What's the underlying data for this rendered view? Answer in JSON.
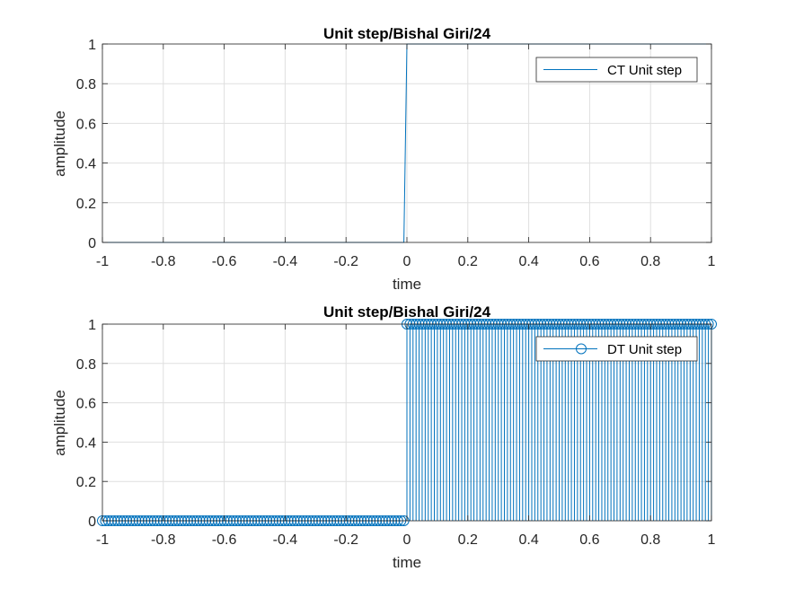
{
  "chart_data": [
    {
      "type": "line",
      "title": "Unit step/Bishal Giri/24",
      "xlabel": "time",
      "ylabel": "amplitude",
      "xlim": [
        -1,
        1
      ],
      "ylim": [
        0,
        1
      ],
      "xticks": [
        "-1",
        "-0.8",
        "-0.6",
        "-0.4",
        "-0.2",
        "0",
        "0.2",
        "0.4",
        "0.6",
        "0.8",
        "1"
      ],
      "yticks": [
        "0",
        "0.2",
        "0.4",
        "0.6",
        "0.8",
        "1"
      ],
      "grid": true,
      "legend_position": "top-right",
      "series": [
        {
          "name": "CT Unit step",
          "color": "#0072BD",
          "x": [
            -1,
            -0.01,
            0,
            1
          ],
          "y": [
            0,
            0,
            1,
            1
          ]
        }
      ]
    },
    {
      "type": "stem",
      "title": "Unit step/Bishal Giri/24",
      "xlabel": "time",
      "ylabel": "amplitude",
      "xlim": [
        -1,
        1
      ],
      "ylim": [
        0,
        1
      ],
      "xticks": [
        "-1",
        "-0.8",
        "-0.6",
        "-0.4",
        "-0.2",
        "0",
        "0.2",
        "0.4",
        "0.6",
        "0.8",
        "1"
      ],
      "yticks": [
        "0",
        "0.2",
        "0.4",
        "0.6",
        "0.8",
        "1"
      ],
      "grid": true,
      "legend_position": "top-right",
      "series": [
        {
          "name": "DT Unit step",
          "color": "#0072BD",
          "marker": "circle",
          "x_start": -1,
          "x_end": 1,
          "x_step": 0.01,
          "rule": "y = 1 for x >= 0, otherwise 0"
        }
      ]
    }
  ]
}
